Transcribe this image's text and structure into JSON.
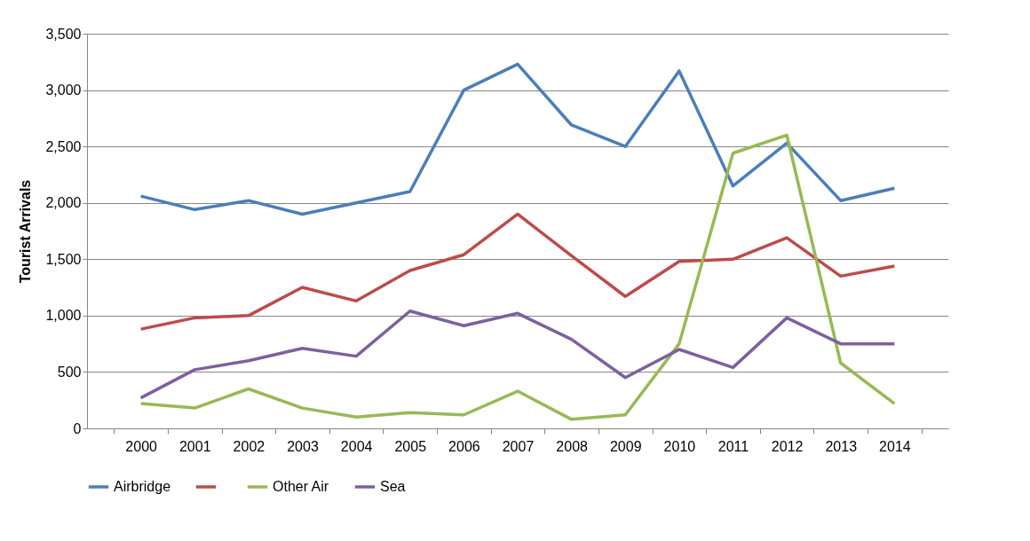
{
  "chart_data": {
    "type": "line",
    "ylabel": "Tourist Arrivals",
    "categories": [
      "2000",
      "2001",
      "2002",
      "2003",
      "2004",
      "2005",
      "2006",
      "2007",
      "2008",
      "2009",
      "2010",
      "2011",
      "2012",
      "2013",
      "2014"
    ],
    "ylim": [
      0,
      3500
    ],
    "yticks": [
      {
        "value": 0,
        "label": "0"
      },
      {
        "value": 500,
        "label": "500"
      },
      {
        "value": 1000,
        "label": "1,000"
      },
      {
        "value": 1500,
        "label": "1,500"
      },
      {
        "value": 2000,
        "label": "2,000"
      },
      {
        "value": 2500,
        "label": "2,500"
      },
      {
        "value": 3000,
        "label": "3,000"
      },
      {
        "value": 3500,
        "label": "3,500"
      }
    ],
    "grid": "y",
    "legend": "bottom",
    "marker": "none",
    "line_style": "solid",
    "series": [
      {
        "name": "Airbridge",
        "color": "#4a7ebb",
        "values": [
          2060,
          1940,
          2020,
          1900,
          2000,
          2100,
          3000,
          3230,
          2690,
          2500,
          3170,
          2150,
          2530,
          2020,
          2130
        ]
      },
      {
        "color": "#be4b48",
        "values": [
          880,
          980,
          1000,
          1250,
          1130,
          1400,
          1540,
          1900,
          1530,
          1170,
          1480,
          1500,
          1690,
          1350,
          1440
        ]
      },
      {
        "name": "Other Air",
        "color": "#98b954",
        "values": [
          220,
          180,
          350,
          180,
          100,
          140,
          120,
          330,
          80,
          120,
          750,
          2440,
          2600,
          580,
          220
        ]
      },
      {
        "name": "Sea",
        "color": "#7d60a0",
        "values": [
          270,
          520,
          600,
          710,
          640,
          1040,
          910,
          1020,
          790,
          450,
          700,
          540,
          980,
          750,
          750
        ]
      }
    ]
  }
}
